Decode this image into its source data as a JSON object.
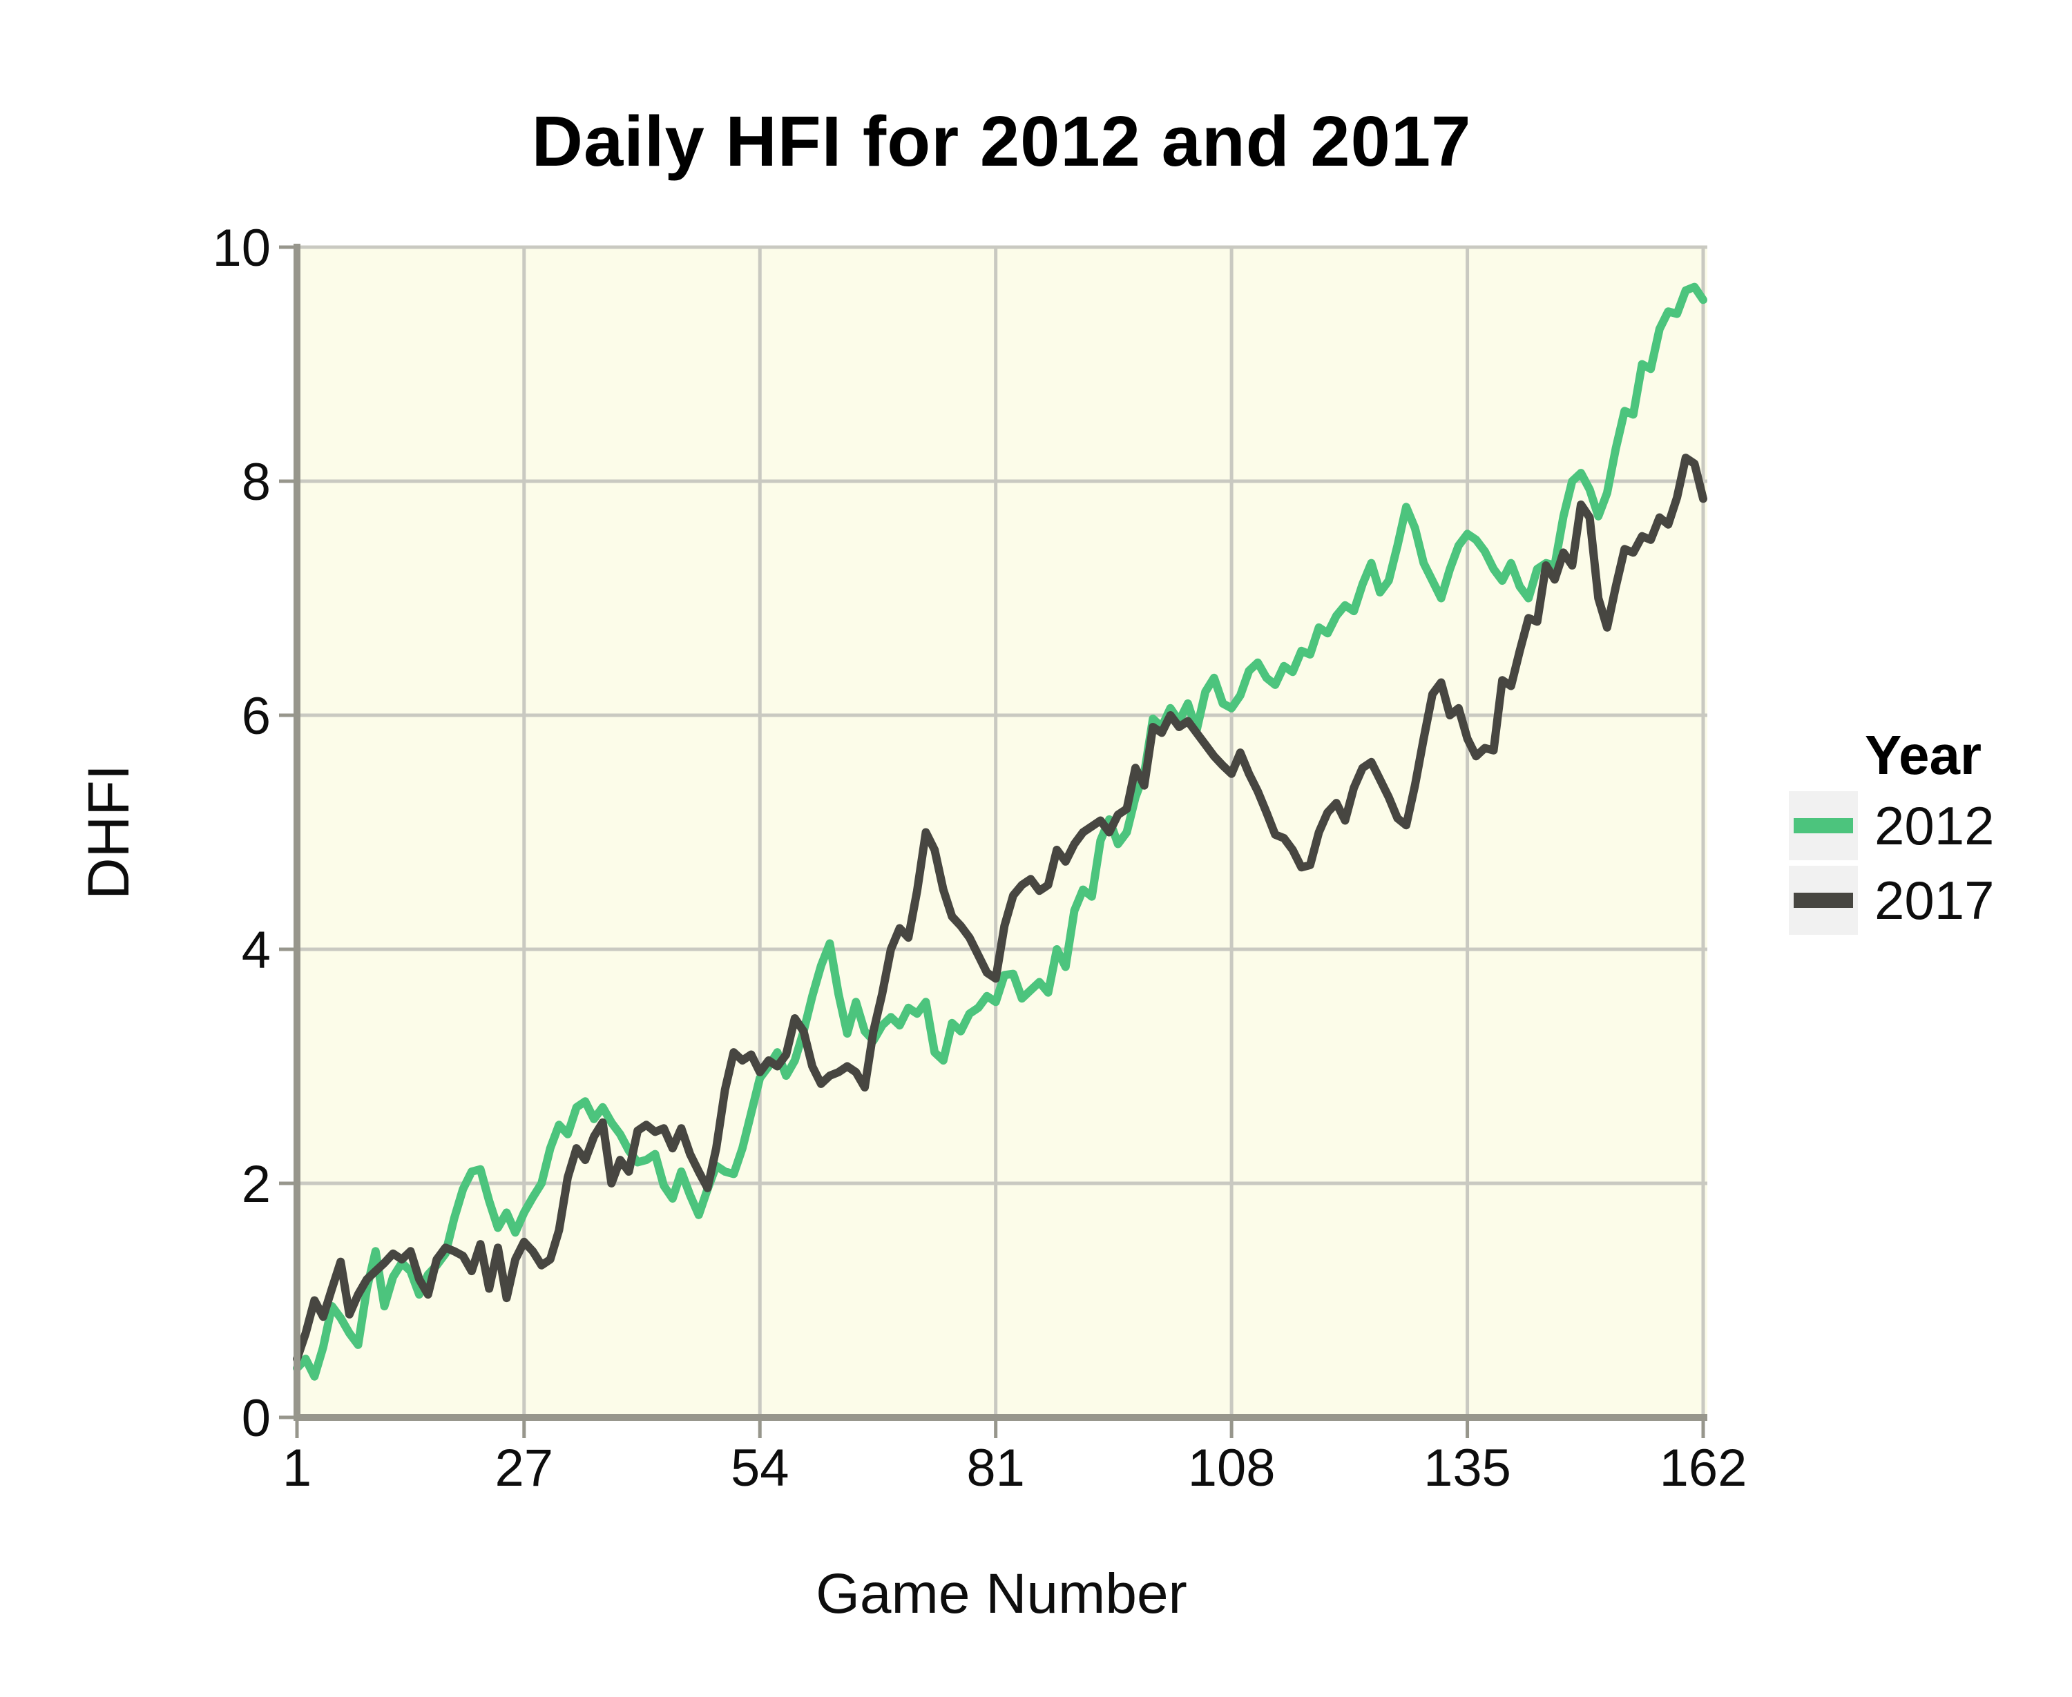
{
  "chart_data": {
    "type": "line",
    "title": "Daily HFI for 2012 and 2017",
    "xlabel": "Game Number",
    "ylabel": "DHFI",
    "xlim": [
      1,
      162
    ],
    "ylim": [
      0,
      10
    ],
    "x_ticks": [
      1,
      27,
      54,
      81,
      108,
      135,
      162
    ],
    "y_ticks": [
      0,
      2,
      4,
      6,
      8,
      10
    ],
    "x_start": 1,
    "x_step": 1,
    "grid": true,
    "panel_background": "#FCFCE9",
    "gridline_color": "#C9C9C1",
    "axis_color": "#97968C",
    "legend": {
      "title": "Year",
      "position": "right",
      "key_background": "#F1F1F1"
    },
    "series": [
      {
        "name": "2012",
        "color": "#4CC47D",
        "values": [
          0.42,
          0.5,
          0.35,
          0.6,
          0.95,
          0.85,
          0.72,
          0.62,
          1.1,
          1.42,
          0.95,
          1.2,
          1.32,
          1.25,
          1.05,
          1.22,
          1.3,
          1.4,
          1.7,
          1.95,
          2.1,
          2.12,
          1.85,
          1.62,
          1.75,
          1.58,
          1.75,
          1.88,
          2.0,
          2.3,
          2.5,
          2.42,
          2.65,
          2.7,
          2.55,
          2.65,
          2.52,
          2.42,
          2.28,
          2.18,
          2.2,
          2.25,
          1.98,
          1.87,
          2.1,
          1.9,
          1.73,
          1.95,
          2.15,
          2.1,
          2.08,
          2.3,
          2.6,
          2.9,
          3.0,
          3.12,
          2.92,
          3.05,
          3.3,
          3.6,
          3.86,
          4.05,
          3.62,
          3.28,
          3.55,
          3.3,
          3.22,
          3.35,
          3.42,
          3.35,
          3.5,
          3.45,
          3.55,
          3.12,
          3.05,
          3.37,
          3.3,
          3.45,
          3.5,
          3.6,
          3.55,
          3.78,
          3.79,
          3.58,
          3.65,
          3.72,
          3.63,
          4.0,
          3.85,
          4.33,
          4.51,
          4.45,
          4.93,
          5.11,
          4.9,
          5.0,
          5.3,
          5.5,
          5.97,
          5.9,
          6.06,
          5.95,
          6.1,
          5.87,
          6.2,
          6.32,
          6.1,
          6.06,
          6.17,
          6.38,
          6.45,
          6.32,
          6.26,
          6.42,
          6.37,
          6.55,
          6.52,
          6.75,
          6.7,
          6.85,
          6.94,
          6.89,
          7.12,
          7.3,
          7.05,
          7.15,
          7.45,
          7.78,
          7.6,
          7.3,
          7.15,
          7.0,
          7.25,
          7.45,
          7.55,
          7.5,
          7.4,
          7.25,
          7.15,
          7.3,
          7.1,
          7.0,
          7.25,
          7.3,
          7.28,
          7.7,
          8.0,
          8.07,
          7.93,
          7.7,
          7.9,
          8.28,
          8.6,
          8.57,
          9.0,
          8.96,
          9.3,
          9.45,
          9.43,
          9.63,
          9.66,
          9.55
        ]
      },
      {
        "name": "2017",
        "color": "#474641",
        "values": [
          0.5,
          0.72,
          1.0,
          0.86,
          1.1,
          1.33,
          0.88,
          1.05,
          1.18,
          1.25,
          1.32,
          1.4,
          1.35,
          1.42,
          1.18,
          1.05,
          1.35,
          1.45,
          1.42,
          1.38,
          1.25,
          1.48,
          1.1,
          1.45,
          1.02,
          1.35,
          1.5,
          1.42,
          1.3,
          1.35,
          1.6,
          2.05,
          2.3,
          2.2,
          2.4,
          2.52,
          2.0,
          2.2,
          2.1,
          2.45,
          2.5,
          2.44,
          2.47,
          2.3,
          2.47,
          2.25,
          2.1,
          1.96,
          2.3,
          2.8,
          3.12,
          3.05,
          3.1,
          2.95,
          3.05,
          3.0,
          3.1,
          3.41,
          3.3,
          3.0,
          2.85,
          2.92,
          2.95,
          3.0,
          2.95,
          2.82,
          3.3,
          3.62,
          4.0,
          4.18,
          4.1,
          4.5,
          5.0,
          4.85,
          4.51,
          4.28,
          4.2,
          4.1,
          3.95,
          3.8,
          3.75,
          4.2,
          4.46,
          4.55,
          4.6,
          4.5,
          4.55,
          4.85,
          4.75,
          4.9,
          5.0,
          5.05,
          5.1,
          5.0,
          5.15,
          5.2,
          5.55,
          5.4,
          5.9,
          5.85,
          6.0,
          5.9,
          5.95,
          5.85,
          5.75,
          5.65,
          5.57,
          5.5,
          5.68,
          5.5,
          5.35,
          5.17,
          4.98,
          4.95,
          4.85,
          4.7,
          4.72,
          5.0,
          5.17,
          5.25,
          5.1,
          5.38,
          5.55,
          5.6,
          5.45,
          5.3,
          5.12,
          5.06,
          5.4,
          5.8,
          6.18,
          6.28,
          6.0,
          6.06,
          5.8,
          5.65,
          5.72,
          5.7,
          6.3,
          6.25,
          6.55,
          6.83,
          6.8,
          7.28,
          7.16,
          7.39,
          7.28,
          7.8,
          7.69,
          7.0,
          6.75,
          7.1,
          7.42,
          7.39,
          7.53,
          7.5,
          7.69,
          7.63,
          7.86,
          8.2,
          8.15,
          7.85
        ]
      }
    ]
  }
}
